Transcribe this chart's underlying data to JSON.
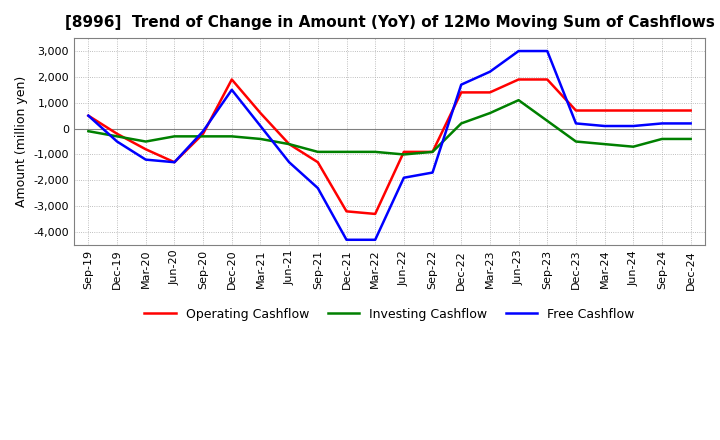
{
  "title": "[8996]  Trend of Change in Amount (YoY) of 12Mo Moving Sum of Cashflows",
  "ylabel": "Amount (million yen)",
  "x_labels": [
    "Sep-19",
    "Dec-19",
    "Mar-20",
    "Jun-20",
    "Sep-20",
    "Dec-20",
    "Mar-21",
    "Jun-21",
    "Sep-21",
    "Dec-21",
    "Mar-22",
    "Jun-22",
    "Sep-22",
    "Dec-22",
    "Mar-23",
    "Jun-23",
    "Sep-23",
    "Dec-23",
    "Mar-24",
    "Jun-24",
    "Sep-24",
    "Dec-24"
  ],
  "operating": [
    500,
    -200,
    -800,
    -1300,
    -200,
    1900,
    600,
    -600,
    -1300,
    -3200,
    -3300,
    -900,
    -900,
    1400,
    1400,
    1900,
    1900,
    700,
    700,
    700,
    700,
    700
  ],
  "investing": [
    -100,
    -300,
    -500,
    -300,
    -300,
    -300,
    -400,
    -600,
    -900,
    -900,
    -900,
    -1000,
    -900,
    200,
    600,
    1100,
    300,
    -500,
    -600,
    -700,
    -400,
    -400
  ],
  "free": [
    500,
    -500,
    -1200,
    -1300,
    -100,
    1500,
    100,
    -1300,
    -2300,
    -4300,
    -4300,
    -1900,
    -1700,
    1700,
    2200,
    3000,
    3000,
    200,
    100,
    100,
    200,
    200
  ],
  "operating_color": "#ff0000",
  "investing_color": "#008000",
  "free_color": "#0000ff",
  "ylim": [
    -4500,
    3500
  ],
  "yticks": [
    -4000,
    -3000,
    -2000,
    -1000,
    0,
    1000,
    2000,
    3000
  ],
  "background_color": "#ffffff",
  "grid_color": "#aaaaaa",
  "title_fontsize": 11,
  "tick_fontsize": 8,
  "ylabel_fontsize": 9,
  "legend_fontsize": 9
}
